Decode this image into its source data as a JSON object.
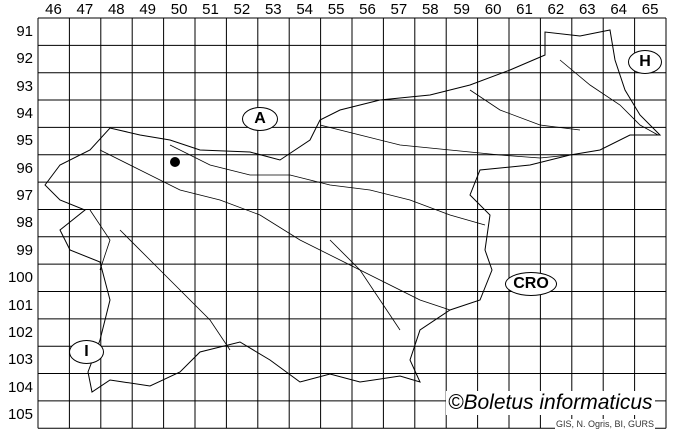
{
  "grid": {
    "columns": [
      "46",
      "47",
      "48",
      "49",
      "50",
      "51",
      "52",
      "53",
      "54",
      "55",
      "56",
      "57",
      "58",
      "59",
      "60",
      "61",
      "62",
      "63",
      "64",
      "65"
    ],
    "rows": [
      "91",
      "92",
      "93",
      "94",
      "95",
      "96",
      "97",
      "98",
      "99",
      "100",
      "101",
      "102",
      "103",
      "104",
      "105"
    ]
  },
  "countries": {
    "austria": "A",
    "hungary": "H",
    "croatia": "CRO",
    "italy": "I"
  },
  "record": {
    "column": "50",
    "row": "96"
  },
  "copyright": "©Boletus informaticus",
  "credit": "GIS, N. Ogris, BI, GURS"
}
